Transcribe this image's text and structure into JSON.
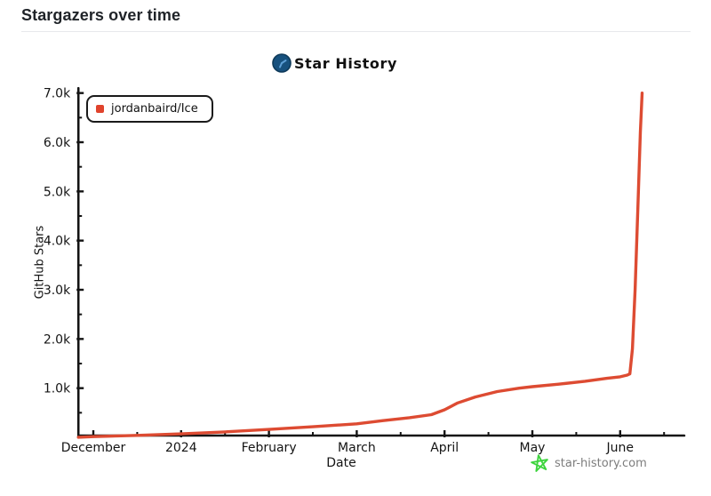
{
  "header": {
    "title": "Stargazers over time"
  },
  "chart": {
    "title": "Star History",
    "logo_color": "#17517e",
    "logo_hand_color": "#5c9fd6",
    "legend": {
      "label": "jordanbaird/Ice",
      "marker_color": "#e0432c"
    },
    "watermark": {
      "label": "star-history.com",
      "icon_color": "#3ed43e",
      "text_color": "#7d7d7d"
    }
  },
  "chart_data": {
    "type": "line",
    "title": "Star History",
    "xlabel": "Date",
    "ylabel": "GitHub Stars",
    "grid": false,
    "legend_position": "top-left",
    "axis_color": "#141414",
    "xlim": [
      -0.17,
      6.73
    ],
    "ylim": [
      0,
      7250
    ],
    "x_ticks": [
      {
        "pos": 0,
        "label": "December"
      },
      {
        "pos": 1,
        "label": "2024"
      },
      {
        "pos": 2,
        "label": "February"
      },
      {
        "pos": 3,
        "label": "March"
      },
      {
        "pos": 4,
        "label": "April"
      },
      {
        "pos": 5,
        "label": "May"
      },
      {
        "pos": 6,
        "label": "June"
      }
    ],
    "x_minor_ticks": [
      0.5,
      1.5,
      2.5,
      3.5,
      4.5,
      5.5,
      6.5
    ],
    "y_ticks": [
      {
        "value": 1000,
        "label": "1.0k"
      },
      {
        "value": 2000,
        "label": "2.0k"
      },
      {
        "value": 3000,
        "label": "3.0k"
      },
      {
        "value": 4000,
        "label": "4.0k"
      },
      {
        "value": 5000,
        "label": "5.0k"
      },
      {
        "value": 6000,
        "label": "6.0k"
      },
      {
        "value": 7000,
        "label": "7.0k"
      }
    ],
    "y_minor_ticks": [
      500,
      1500,
      2500,
      3500,
      4500,
      5500,
      6500
    ],
    "series": [
      {
        "name": "jordanbaird/Ice",
        "color": "#dd4b32",
        "points": [
          [
            -0.17,
            2
          ],
          [
            0,
            15
          ],
          [
            0.5,
            40
          ],
          [
            1,
            70
          ],
          [
            1.5,
            110
          ],
          [
            2,
            160
          ],
          [
            2.5,
            215
          ],
          [
            3,
            275
          ],
          [
            3.3,
            340
          ],
          [
            3.6,
            400
          ],
          [
            3.85,
            460
          ],
          [
            4.0,
            560
          ],
          [
            4.15,
            700
          ],
          [
            4.35,
            820
          ],
          [
            4.6,
            930
          ],
          [
            4.85,
            1000
          ],
          [
            5.0,
            1030
          ],
          [
            5.3,
            1080
          ],
          [
            5.6,
            1140
          ],
          [
            5.85,
            1200
          ],
          [
            6.0,
            1230
          ],
          [
            6.08,
            1265
          ],
          [
            6.11,
            1290
          ],
          [
            6.14,
            1800
          ],
          [
            6.17,
            3000
          ],
          [
            6.2,
            4600
          ],
          [
            6.23,
            6200
          ],
          [
            6.25,
            7000
          ]
        ]
      }
    ]
  }
}
